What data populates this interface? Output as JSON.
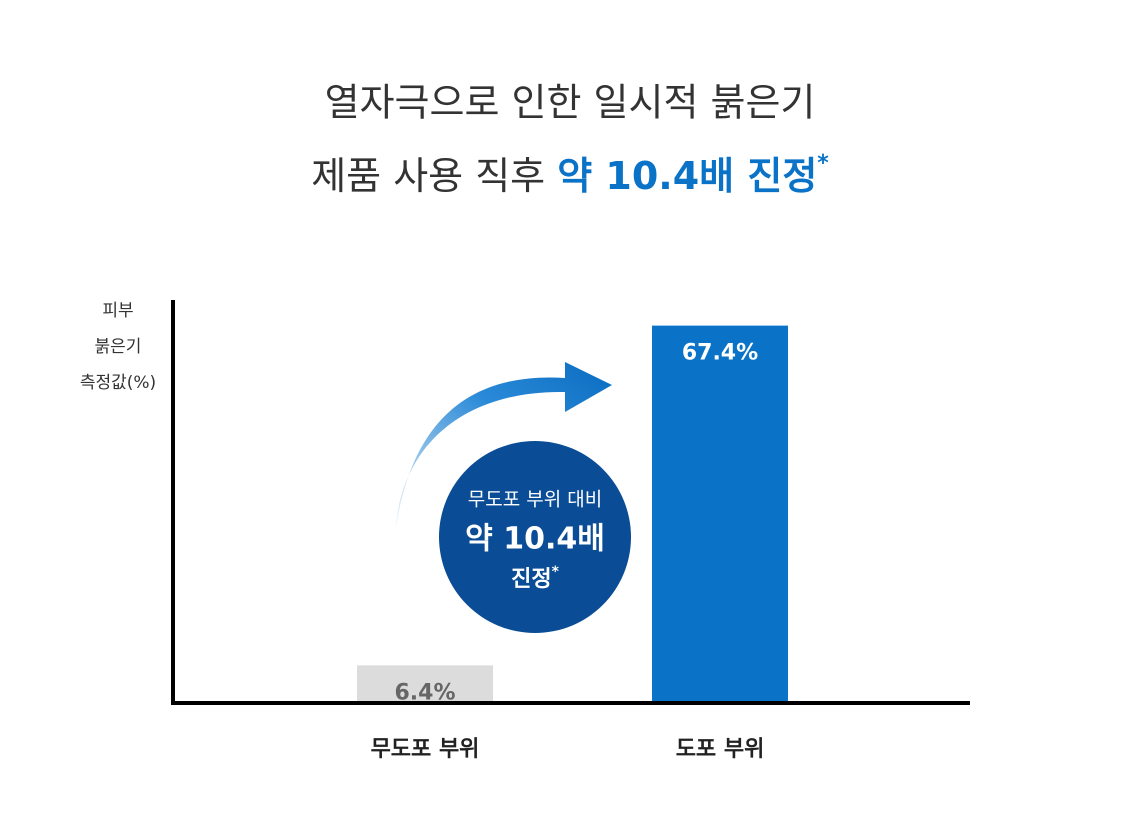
{
  "chart_data": {
    "type": "bar",
    "title": "열자극으로 인한 일시적 붉은기",
    "subtitle": [
      "제품 사용 직후",
      "약 10.4배 진정",
      "*"
    ],
    "ylabel": [
      "피부",
      "붉은기",
      "측정값(%)"
    ],
    "categories": [
      "무도포 부위",
      "도포 부위"
    ],
    "values": [
      6.4,
      67.4
    ],
    "value_labels": [
      "6.4%",
      "67.4%"
    ],
    "colors": [
      "#dcdcdc",
      "#0a73c8"
    ],
    "ylim": [
      0,
      72
    ],
    "annotation": [
      "무도포 부위 대비",
      "약 10.4배",
      "진정",
      "*"
    ]
  }
}
